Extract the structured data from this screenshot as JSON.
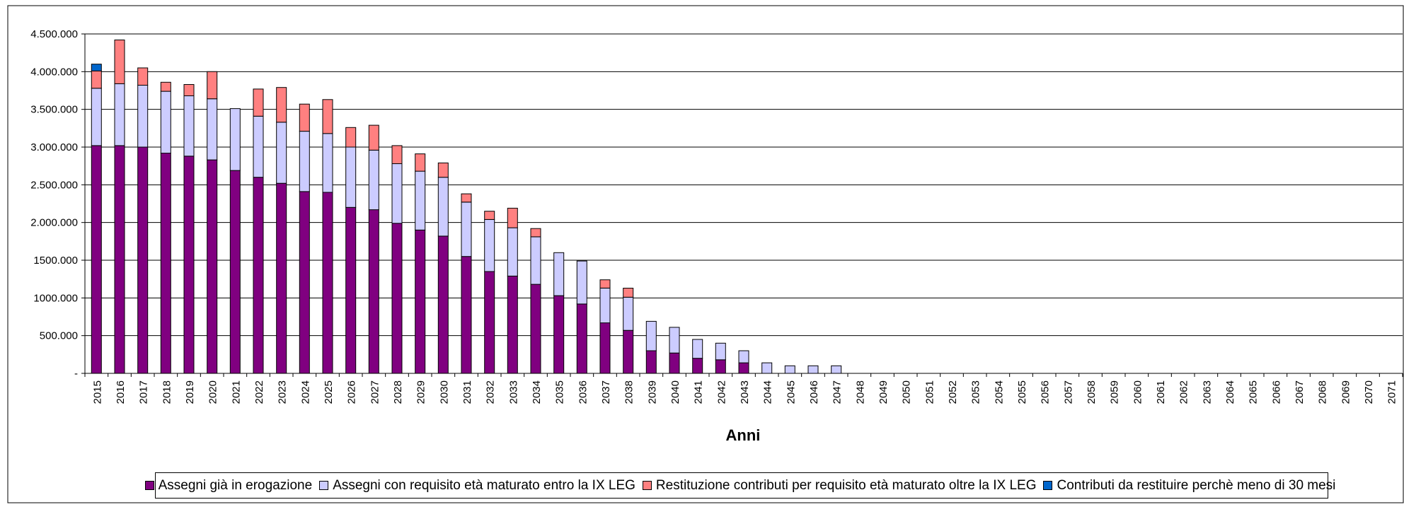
{
  "chart_data": {
    "type": "bar",
    "stacked": true,
    "title": "",
    "xlabel": "Anni",
    "ylabel": "",
    "ylim": [
      0,
      4500000
    ],
    "y_ticks": [
      {
        "value": 0,
        "label": "-"
      },
      {
        "value": 500000,
        "label": "500.000"
      },
      {
        "value": 1000000,
        "label": "1000.000"
      },
      {
        "value": 1500000,
        "label": "1500.000"
      },
      {
        "value": 2000000,
        "label": "2.000.000"
      },
      {
        "value": 2500000,
        "label": "2.500.000"
      },
      {
        "value": 3000000,
        "label": "3.000.000"
      },
      {
        "value": 3500000,
        "label": "3.500.000"
      },
      {
        "value": 4000000,
        "label": "4.000.000"
      },
      {
        "value": 4500000,
        "label": "4.500.000"
      }
    ],
    "grid": true,
    "legend_position": "bottom",
    "categories": [
      "2015",
      "2016",
      "2017",
      "2018",
      "2019",
      "2020",
      "2021",
      "2022",
      "2023",
      "2024",
      "2025",
      "2026",
      "2027",
      "2028",
      "2029",
      "2030",
      "2031",
      "2032",
      "2033",
      "2034",
      "2035",
      "2036",
      "2037",
      "2038",
      "2039",
      "2040",
      "2041",
      "2042",
      "2043",
      "2044",
      "2045",
      "2046",
      "2047",
      "2048",
      "2049",
      "2050",
      "2051",
      "2052",
      "2053",
      "2054",
      "2055",
      "2056",
      "2057",
      "2058",
      "2059",
      "2060",
      "2061",
      "2062",
      "2063",
      "2064",
      "2065",
      "2066",
      "2067",
      "2068",
      "2069",
      "2070",
      "2071"
    ],
    "series": [
      {
        "name": "Assegni già in erogazione",
        "color": "#800080",
        "values": [
          3020000,
          3020000,
          3000000,
          2920000,
          2880000,
          2830000,
          2690000,
          2600000,
          2520000,
          2410000,
          2400000,
          2200000,
          2170000,
          1990000,
          1900000,
          1820000,
          1550000,
          1350000,
          1290000,
          1180000,
          1030000,
          920000,
          670000,
          570000,
          300000,
          270000,
          200000,
          180000,
          140000,
          0,
          0,
          0,
          0,
          0,
          0,
          0,
          0,
          0,
          0,
          0,
          0,
          0,
          0,
          0,
          0,
          0,
          0,
          0,
          0,
          0,
          0,
          0,
          0,
          0,
          0,
          0,
          0
        ]
      },
      {
        "name": "Assegni con requisito età maturato entro la IX LEG",
        "color": "#ccccff",
        "values": [
          760000,
          820000,
          820000,
          820000,
          800000,
          810000,
          820000,
          810000,
          810000,
          800000,
          780000,
          800000,
          790000,
          790000,
          780000,
          780000,
          720000,
          690000,
          640000,
          630000,
          570000,
          570000,
          460000,
          440000,
          390000,
          340000,
          250000,
          220000,
          160000,
          140000,
          100000,
          100000,
          100000,
          0,
          0,
          0,
          0,
          0,
          0,
          0,
          0,
          0,
          0,
          0,
          0,
          0,
          0,
          0,
          0,
          0,
          0,
          0,
          0,
          0,
          0,
          0,
          0
        ]
      },
      {
        "name": "Restituzione contributi per requisito età maturato oltre la IX LEG",
        "color": "#ff8080",
        "values": [
          230000,
          580000,
          230000,
          120000,
          150000,
          360000,
          0,
          360000,
          460000,
          360000,
          450000,
          260000,
          330000,
          240000,
          230000,
          190000,
          110000,
          110000,
          260000,
          110000,
          0,
          0,
          110000,
          120000,
          0,
          0,
          0,
          0,
          0,
          0,
          0,
          0,
          0,
          0,
          0,
          0,
          0,
          0,
          0,
          0,
          0,
          0,
          0,
          0,
          0,
          0,
          0,
          0,
          0,
          0,
          0,
          0,
          0,
          0,
          0,
          0,
          0
        ]
      },
      {
        "name": "Contributi da restituire perchè meno di 30 mesi",
        "color": "#0066cc",
        "values": [
          90000,
          0,
          0,
          0,
          0,
          0,
          0,
          0,
          0,
          0,
          0,
          0,
          0,
          0,
          0,
          0,
          0,
          0,
          0,
          0,
          0,
          0,
          0,
          0,
          0,
          0,
          0,
          0,
          0,
          0,
          0,
          0,
          0,
          0,
          0,
          0,
          0,
          0,
          0,
          0,
          0,
          0,
          0,
          0,
          0,
          0,
          0,
          0,
          0,
          0,
          0,
          0,
          0,
          0,
          0,
          0,
          0
        ]
      }
    ]
  }
}
